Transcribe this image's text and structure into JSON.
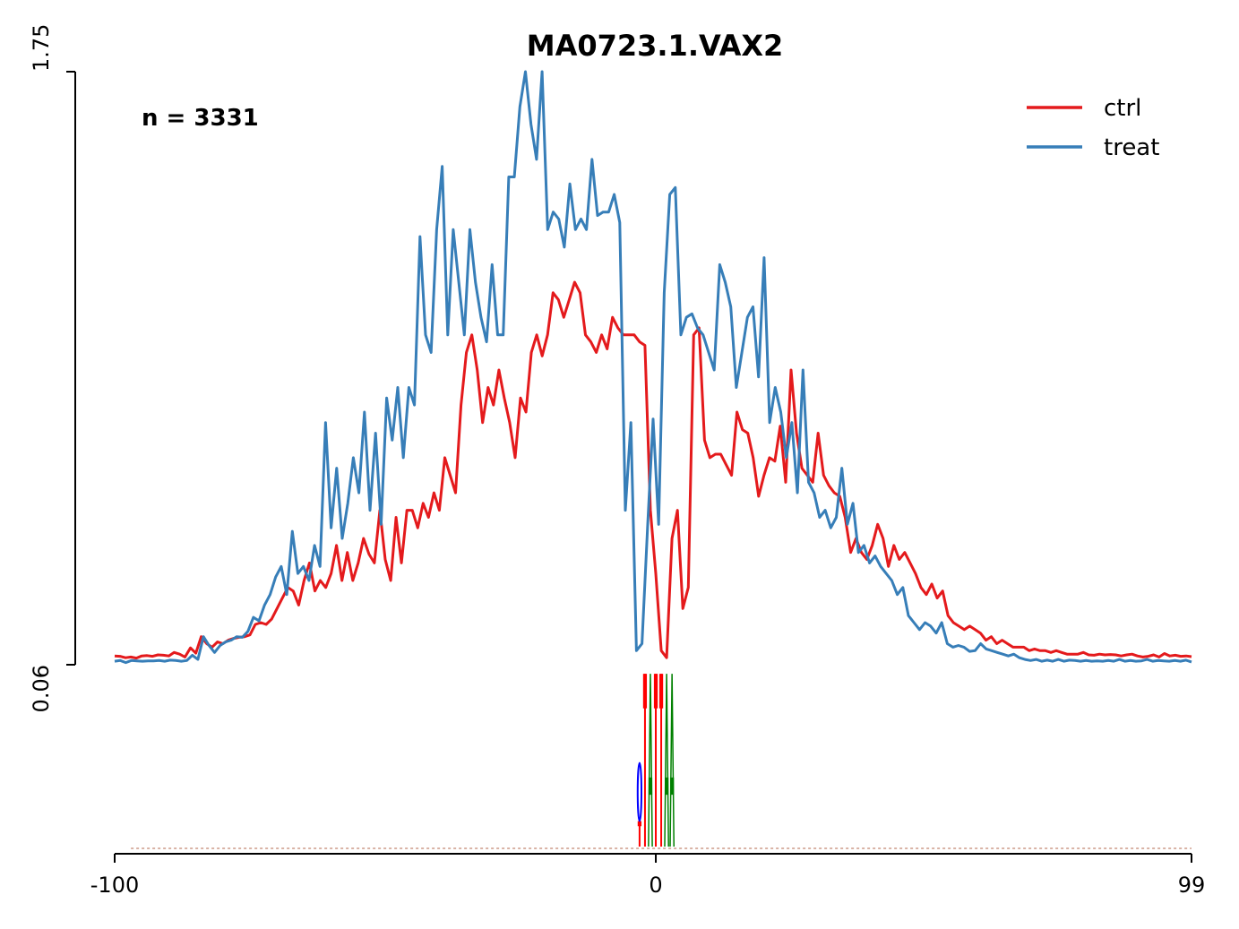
{
  "chart_data": {
    "type": "line",
    "title": "MA0723.1.VAX2",
    "annotation": "n = 3331",
    "x_range": [
      -100,
      99
    ],
    "x_ticks": [
      "-100",
      "0",
      "99"
    ],
    "y_range": [
      0.06,
      1.75
    ],
    "y_ticks": [
      "0.06",
      "1.75"
    ],
    "grid": false,
    "legend_position": "top-right",
    "series": [
      {
        "name": "ctrl",
        "color": "#e41a1c",
        "values": [
          0.085,
          0.084,
          0.08,
          0.082,
          0.079,
          0.085,
          0.086,
          0.084,
          0.088,
          0.087,
          0.085,
          0.095,
          0.09,
          0.082,
          0.108,
          0.093,
          0.14,
          0.12,
          0.11,
          0.125,
          0.12,
          0.13,
          0.135,
          0.138,
          0.14,
          0.145,
          0.175,
          0.18,
          0.175,
          0.19,
          0.22,
          0.25,
          0.28,
          0.27,
          0.23,
          0.3,
          0.35,
          0.27,
          0.3,
          0.28,
          0.32,
          0.4,
          0.3,
          0.38,
          0.3,
          0.35,
          0.42,
          0.375,
          0.35,
          0.5,
          0.36,
          0.3,
          0.48,
          0.35,
          0.5,
          0.5,
          0.45,
          0.52,
          0.48,
          0.55,
          0.5,
          0.65,
          0.6,
          0.55,
          0.8,
          0.95,
          1.0,
          0.9,
          0.75,
          0.85,
          0.8,
          0.9,
          0.82,
          0.75,
          0.65,
          0.82,
          0.78,
          0.95,
          1.0,
          0.94,
          1.0,
          1.12,
          1.1,
          1.05,
          1.1,
          1.15,
          1.12,
          1.0,
          0.98,
          0.95,
          1.0,
          0.96,
          1.05,
          1.02,
          1.0,
          1.0,
          1.0,
          0.98,
          0.97,
          0.5,
          0.32,
          0.1,
          0.08,
          0.42,
          0.5,
          0.22,
          0.28,
          1.0,
          1.02,
          0.7,
          0.65,
          0.66,
          0.66,
          0.63,
          0.6,
          0.78,
          0.73,
          0.72,
          0.65,
          0.54,
          0.6,
          0.65,
          0.64,
          0.74,
          0.58,
          0.9,
          0.72,
          0.62,
          0.6,
          0.58,
          0.72,
          0.6,
          0.57,
          0.55,
          0.54,
          0.48,
          0.38,
          0.42,
          0.38,
          0.36,
          0.4,
          0.46,
          0.42,
          0.34,
          0.4,
          0.36,
          0.38,
          0.35,
          0.32,
          0.28,
          0.26,
          0.29,
          0.25,
          0.27,
          0.2,
          0.18,
          0.17,
          0.16,
          0.17,
          0.16,
          0.15,
          0.13,
          0.14,
          0.12,
          0.13,
          0.12,
          0.11,
          0.11,
          0.11,
          0.1,
          0.105,
          0.1,
          0.1,
          0.095,
          0.1,
          0.095,
          0.09,
          0.09,
          0.09,
          0.095,
          0.088,
          0.087,
          0.09,
          0.088,
          0.089,
          0.088,
          0.085,
          0.088,
          0.09,
          0.085,
          0.082,
          0.084,
          0.088,
          0.082,
          0.092,
          0.085,
          0.087,
          0.084,
          0.085,
          0.083
        ]
      },
      {
        "name": "treat",
        "color": "#377eb8",
        "values": [
          0.07,
          0.072,
          0.066,
          0.072,
          0.071,
          0.07,
          0.071,
          0.071,
          0.072,
          0.07,
          0.073,
          0.072,
          0.07,
          0.072,
          0.087,
          0.075,
          0.14,
          0.115,
          0.095,
          0.115,
          0.125,
          0.13,
          0.14,
          0.138,
          0.155,
          0.195,
          0.185,
          0.23,
          0.26,
          0.31,
          0.34,
          0.26,
          0.44,
          0.32,
          0.34,
          0.3,
          0.4,
          0.34,
          0.75,
          0.45,
          0.62,
          0.42,
          0.52,
          0.65,
          0.55,
          0.78,
          0.5,
          0.72,
          0.46,
          0.82,
          0.7,
          0.85,
          0.65,
          0.85,
          0.8,
          1.28,
          1.0,
          0.95,
          1.3,
          1.48,
          1.0,
          1.3,
          1.15,
          1.0,
          1.3,
          1.15,
          1.05,
          0.98,
          1.2,
          1.0,
          1.0,
          1.45,
          1.45,
          1.65,
          1.75,
          1.6,
          1.5,
          1.75,
          1.3,
          1.35,
          1.33,
          1.25,
          1.43,
          1.3,
          1.33,
          1.3,
          1.5,
          1.34,
          1.35,
          1.35,
          1.4,
          1.32,
          0.5,
          0.75,
          0.1,
          0.12,
          0.45,
          0.76,
          0.46,
          1.12,
          1.4,
          1.42,
          1.0,
          1.05,
          1.06,
          1.02,
          1.0,
          0.95,
          0.9,
          1.2,
          1.15,
          1.08,
          0.85,
          0.95,
          1.05,
          1.08,
          0.88,
          1.22,
          0.75,
          0.85,
          0.78,
          0.65,
          0.75,
          0.55,
          0.9,
          0.58,
          0.55,
          0.48,
          0.5,
          0.45,
          0.48,
          0.62,
          0.46,
          0.52,
          0.38,
          0.4,
          0.35,
          0.37,
          0.34,
          0.32,
          0.3,
          0.26,
          0.28,
          0.2,
          0.18,
          0.16,
          0.18,
          0.17,
          0.15,
          0.18,
          0.12,
          0.11,
          0.115,
          0.11,
          0.098,
          0.1,
          0.12,
          0.105,
          0.1,
          0.095,
          0.09,
          0.085,
          0.09,
          0.08,
          0.075,
          0.072,
          0.075,
          0.07,
          0.073,
          0.07,
          0.075,
          0.07,
          0.073,
          0.072,
          0.07,
          0.072,
          0.07,
          0.071,
          0.07,
          0.072,
          0.07,
          0.075,
          0.07,
          0.072,
          0.07,
          0.071,
          0.075,
          0.07,
          0.072,
          0.071,
          0.07,
          0.072,
          0.07,
          0.073,
          0.068
        ]
      }
    ],
    "motif": {
      "letter_colors": {
        "A": "#008000",
        "C": "#0000ff",
        "G": "#ffa500",
        "T": "#ff0000"
      },
      "columns": [
        {
          "x": -3,
          "letters": [
            {
              "base": "T",
              "bits": 0.14
            },
            {
              "base": "C",
              "bits": 0.32
            }
          ]
        },
        {
          "x": -2,
          "letters": [
            {
              "base": "T",
              "bits": 0.95
            }
          ]
        },
        {
          "x": -1,
          "letters": [
            {
              "base": "A",
              "bits": 0.95
            }
          ]
        },
        {
          "x": 0,
          "letters": [
            {
              "base": "T",
              "bits": 0.95
            }
          ]
        },
        {
          "x": 1,
          "letters": [
            {
              "base": "T",
              "bits": 0.95
            }
          ]
        },
        {
          "x": 2,
          "letters": [
            {
              "base": "A",
              "bits": 0.95
            }
          ]
        },
        {
          "x": 3,
          "letters": [
            {
              "base": "A",
              "bits": 0.95
            }
          ]
        }
      ]
    }
  }
}
